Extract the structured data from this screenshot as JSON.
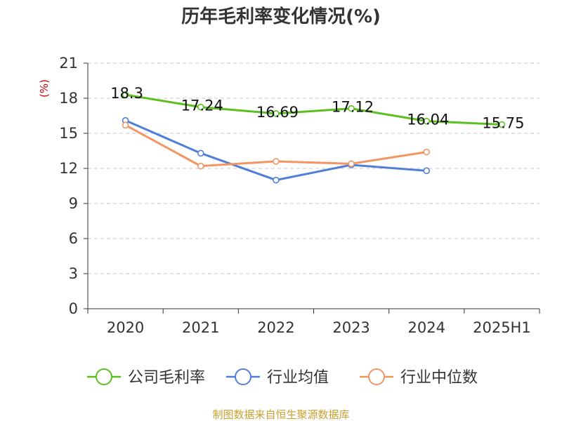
{
  "chart_data": {
    "type": "line",
    "title": "历年毛利率变化情况(%)",
    "ylabel": "(%)",
    "categories": [
      "2020",
      "2021",
      "2022",
      "2023",
      "2024",
      "2025H1"
    ],
    "ylim": [
      0,
      21
    ],
    "yticks": [
      0,
      3,
      6,
      9,
      12,
      15,
      18,
      21
    ],
    "grid": true,
    "legend_position": "bottom",
    "series": [
      {
        "name": "公司毛利率",
        "color": "#5cbf1f",
        "values": [
          18.3,
          17.24,
          16.69,
          17.12,
          16.04,
          15.75
        ],
        "labels": [
          "18.3",
          "17.24",
          "16.69",
          "17.12",
          "16.04",
          "15.75"
        ]
      },
      {
        "name": "行业均值",
        "color": "#4f7fd9",
        "values": [
          16.1,
          13.3,
          11.0,
          12.3,
          11.8,
          null
        ]
      },
      {
        "name": "行业中位数",
        "color": "#f39463",
        "values": [
          15.7,
          12.2,
          12.6,
          12.4,
          13.4,
          null
        ]
      }
    ],
    "source": "制图数据来自恒生聚源数据库"
  }
}
